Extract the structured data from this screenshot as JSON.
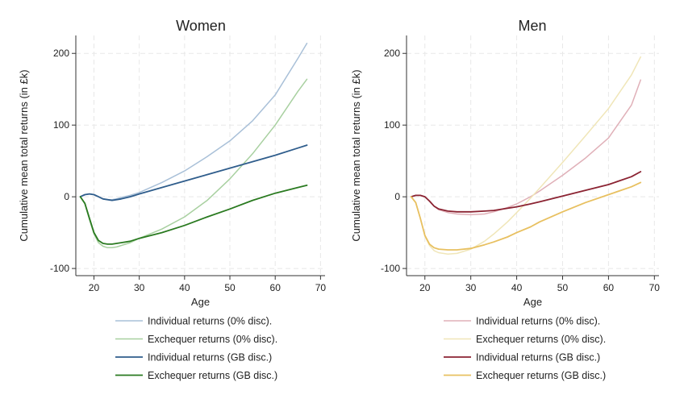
{
  "chart_data": [
    {
      "type": "line",
      "title": "Women",
      "xlabel": "Age",
      "ylabel": "Cumulative mean total returns (in £k)",
      "xlim": [
        16,
        71
      ],
      "ylim": [
        -110,
        225
      ],
      "xticks": [
        20,
        30,
        40,
        50,
        60,
        70
      ],
      "yticks": [
        -100,
        0,
        100,
        200
      ],
      "grid": true,
      "legend_position": "bottom",
      "series": [
        {
          "name": "Individual returns (0% disc).",
          "color": "#a9c0d8",
          "x": [
            17,
            18,
            19,
            20,
            21,
            22,
            23,
            24,
            25,
            26,
            28,
            30,
            35,
            40,
            45,
            50,
            55,
            60,
            65,
            67
          ],
          "y": [
            0,
            3,
            4,
            3,
            0,
            -3,
            -4,
            -4,
            -3,
            -1,
            2,
            6,
            20,
            36,
            56,
            78,
            106,
            142,
            193,
            214
          ]
        },
        {
          "name": "Exchequer returns (0% disc).",
          "color": "#a8d0a0",
          "x": [
            17,
            18,
            19,
            20,
            21,
            22,
            23,
            24,
            25,
            26,
            28,
            30,
            35,
            40,
            45,
            50,
            55,
            60,
            65,
            67
          ],
          "y": [
            0,
            -10,
            -32,
            -52,
            -64,
            -69,
            -71,
            -71,
            -70,
            -68,
            -64,
            -58,
            -45,
            -28,
            -5,
            25,
            60,
            100,
            147,
            164
          ]
        },
        {
          "name": "Individual returns (GB disc.)",
          "color": "#2f5d8c",
          "x": [
            17,
            18,
            19,
            20,
            21,
            22,
            23,
            24,
            25,
            26,
            28,
            30,
            35,
            40,
            45,
            50,
            55,
            60,
            65,
            67
          ],
          "y": [
            0,
            3,
            4,
            3,
            0,
            -3,
            -4,
            -5,
            -4,
            -3,
            0,
            4,
            13,
            22,
            31,
            40,
            49,
            58,
            68,
            72
          ]
        },
        {
          "name": "Exchequer returns (GB disc.)",
          "color": "#2a7a20",
          "x": [
            17,
            18,
            19,
            20,
            21,
            22,
            23,
            24,
            25,
            26,
            28,
            30,
            35,
            40,
            45,
            50,
            55,
            60,
            65,
            67
          ],
          "y": [
            0,
            -9,
            -30,
            -50,
            -61,
            -65,
            -66,
            -66,
            -65,
            -64,
            -62,
            -58,
            -50,
            -40,
            -28,
            -17,
            -5,
            5,
            13,
            16
          ]
        }
      ]
    },
    {
      "type": "line",
      "title": "Men",
      "xlabel": "Age",
      "ylabel": "Cumulative mean total returns (in £k)",
      "xlim": [
        16,
        71
      ],
      "ylim": [
        -110,
        225
      ],
      "xticks": [
        20,
        30,
        40,
        50,
        60,
        70
      ],
      "yticks": [
        -100,
        0,
        100,
        200
      ],
      "grid": true,
      "legend_position": "bottom",
      "series": [
        {
          "name": "Individual returns (0% disc).",
          "color": "#e0b0b8",
          "x": [
            17,
            18,
            19,
            20,
            21,
            22,
            23,
            25,
            27,
            30,
            33,
            35,
            38,
            40,
            43,
            45,
            50,
            55,
            60,
            65,
            67
          ],
          "y": [
            0,
            2,
            2,
            0,
            -6,
            -13,
            -18,
            -22,
            -24,
            -25,
            -24,
            -21,
            -15,
            -10,
            0,
            8,
            30,
            54,
            82,
            128,
            163
          ]
        },
        {
          "name": "Exchequer returns (0% disc).",
          "color": "#f0e6b8",
          "x": [
            17,
            18,
            19,
            20,
            21,
            22,
            23,
            25,
            27,
            30,
            33,
            35,
            38,
            40,
            43,
            45,
            50,
            55,
            60,
            65,
            67
          ],
          "y": [
            0,
            -8,
            -30,
            -55,
            -68,
            -75,
            -78,
            -80,
            -79,
            -73,
            -62,
            -52,
            -35,
            -22,
            -2,
            12,
            48,
            85,
            123,
            170,
            195
          ]
        },
        {
          "name": "Individual returns (GB disc.)",
          "color": "#8b2332",
          "x": [
            17,
            18,
            19,
            20,
            21,
            22,
            23,
            25,
            27,
            30,
            33,
            35,
            38,
            40,
            43,
            45,
            50,
            55,
            60,
            65,
            67
          ],
          "y": [
            0,
            2,
            2,
            0,
            -6,
            -13,
            -17,
            -20,
            -21,
            -21,
            -20,
            -19,
            -16,
            -14,
            -10,
            -7,
            1,
            9,
            17,
            28,
            35
          ]
        },
        {
          "name": "Exchequer returns (GB disc.)",
          "color": "#e8c060",
          "x": [
            17,
            18,
            19,
            20,
            21,
            22,
            23,
            25,
            27,
            30,
            33,
            35,
            38,
            40,
            43,
            45,
            50,
            55,
            60,
            65,
            67
          ],
          "y": [
            0,
            -8,
            -30,
            -54,
            -66,
            -71,
            -73,
            -74,
            -74,
            -72,
            -67,
            -63,
            -56,
            -50,
            -42,
            -35,
            -21,
            -8,
            3,
            14,
            20
          ]
        }
      ]
    }
  ]
}
